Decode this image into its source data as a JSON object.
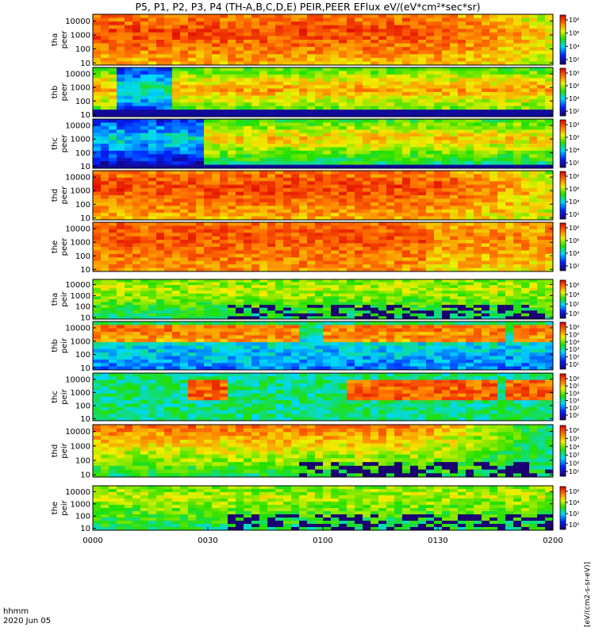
{
  "title": "P5, P1, P2, P3, P4 (TH-A,B,C,D,E) PEIR,PEER EFlux eV/(eV*cm²*sec*sr)",
  "x_axis": {
    "ticks": [
      "0000",
      "0030",
      "0100",
      "0130",
      "0200"
    ],
    "label_line1": "hhmm",
    "label_line2": "2020 Jun 05"
  },
  "colorbar_label": "[eV/(cm2-s-sr-eV)]",
  "chart_data": [
    {
      "type": "heatmap",
      "probe": "tha",
      "species": "peer",
      "ylabel_probe": "tha",
      "ylabel_species": "peer",
      "yscale": "log",
      "ylim": [
        7,
        30000
      ],
      "yticks": [
        "10000",
        "1000",
        "100",
        "10"
      ],
      "cbar_ticks": [
        "10⁸",
        "10⁶",
        "10⁴",
        "10²"
      ],
      "pattern": "high-decay"
    },
    {
      "type": "heatmap",
      "probe": "thb",
      "species": "peer",
      "ylabel_probe": "thb",
      "ylabel_species": "peer",
      "yscale": "log",
      "ylim": [
        7,
        30000
      ],
      "yticks": [
        "10000",
        "1000",
        "100",
        "10"
      ],
      "cbar_ticks": [
        "10⁸",
        "10⁶",
        "10⁴",
        "10²"
      ],
      "pattern": "sheath"
    },
    {
      "type": "heatmap",
      "probe": "thc",
      "species": "peer",
      "ylabel_probe": "thc",
      "ylabel_species": "peer",
      "yscale": "log",
      "ylim": [
        7,
        30000
      ],
      "yticks": [
        "10000",
        "1000",
        "100",
        "10"
      ],
      "cbar_ticks": [
        "10⁸",
        "10⁶",
        "10⁴",
        "10²"
      ],
      "pattern": "sheath-low"
    },
    {
      "type": "heatmap",
      "probe": "thd",
      "species": "peer",
      "ylabel_probe": "thd",
      "ylabel_species": "peer",
      "yscale": "log",
      "ylim": [
        7,
        30000
      ],
      "yticks": [
        "10000",
        "1000",
        "100",
        "10"
      ],
      "cbar_ticks": [
        "10⁸",
        "10⁶",
        "10⁴",
        "10²"
      ],
      "pattern": "high-decay"
    },
    {
      "type": "heatmap",
      "probe": "the",
      "species": "peer",
      "ylabel_probe": "the",
      "ylabel_species": "peer",
      "yscale": "log",
      "ylim": [
        7,
        30000
      ],
      "yticks": [
        "10000",
        "1000",
        "100",
        "10"
      ],
      "cbar_ticks": [
        "10⁸",
        "10⁶",
        "10⁴",
        "10²"
      ],
      "pattern": "high"
    },
    {
      "type": "heatmap",
      "probe": "tha",
      "species": "peir",
      "ylabel_probe": "tha",
      "ylabel_species": "peir",
      "yscale": "log",
      "ylim": [
        7,
        30000
      ],
      "yticks": [
        "10000",
        "1000",
        "100",
        "10"
      ],
      "cbar_ticks": [
        "10⁶",
        "10⁴",
        "10²",
        "10⁰"
      ],
      "pattern": "ion-quiet"
    },
    {
      "type": "heatmap",
      "probe": "thb",
      "species": "peir",
      "ylabel_probe": "thb",
      "ylabel_species": "peir",
      "yscale": "log",
      "ylim": [
        7,
        30000
      ],
      "yticks": [
        "10000",
        "1000",
        "100",
        "10"
      ],
      "cbar_ticks": [
        "10⁶",
        "10⁵",
        "10⁴",
        "10³",
        "10²",
        "10¹"
      ],
      "pattern": "ion-sheath"
    },
    {
      "type": "heatmap",
      "probe": "thc",
      "species": "peir",
      "ylabel_probe": "thc",
      "ylabel_species": "peir",
      "yscale": "log",
      "ylim": [
        7,
        30000
      ],
      "yticks": [
        "10000",
        "1000",
        "100",
        "10"
      ],
      "cbar_ticks": [
        "10⁶",
        "10⁵",
        "10⁴",
        "10³",
        "10²",
        "10¹"
      ],
      "pattern": "ion-sheath2"
    },
    {
      "type": "heatmap",
      "probe": "thd",
      "species": "peir",
      "ylabel_probe": "thd",
      "ylabel_species": "peir",
      "yscale": "log",
      "ylim": [
        7,
        30000
      ],
      "yticks": [
        "10000",
        "1000",
        "100",
        "10"
      ],
      "cbar_ticks": [
        "10⁶",
        "10⁵",
        "10⁴",
        "10³",
        "10²",
        "10¹"
      ],
      "pattern": "ion-decay"
    },
    {
      "type": "heatmap",
      "probe": "the",
      "species": "peir",
      "ylabel_probe": "the",
      "ylabel_species": "peir",
      "yscale": "log",
      "ylim": [
        7,
        30000
      ],
      "yticks": [
        "10000",
        "1000",
        "100",
        "10"
      ],
      "cbar_ticks": [
        "10⁶",
        "10⁴",
        "10²",
        "10⁰"
      ],
      "pattern": "ion-quiet"
    }
  ]
}
